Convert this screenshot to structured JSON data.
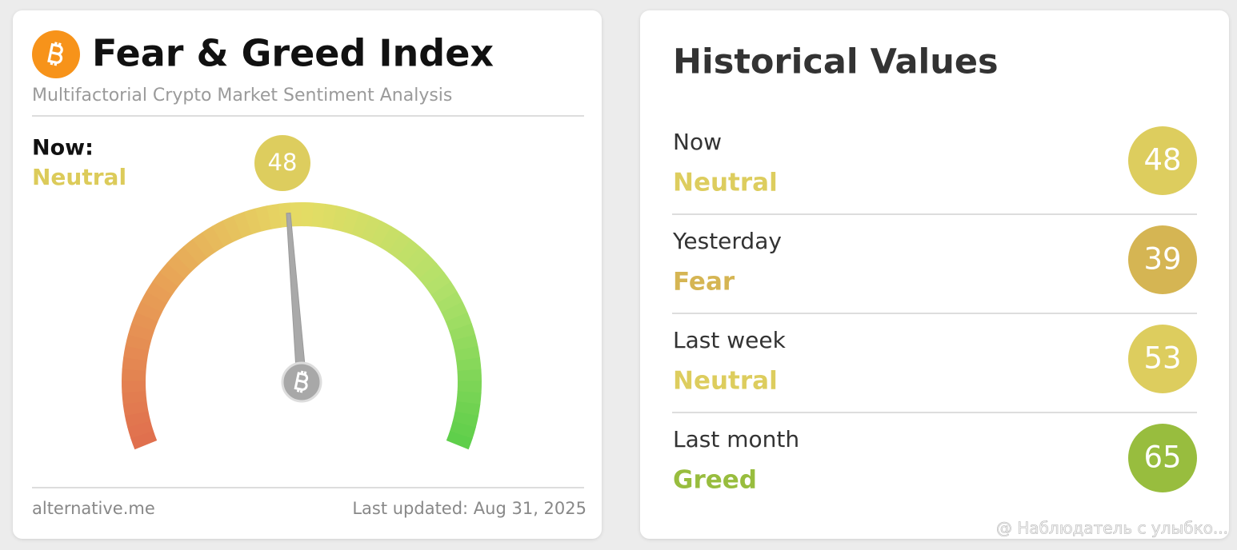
{
  "fear_greed_card": {
    "title": "Fear & Greed Index",
    "subtitle": "Multifactorial Crypto Market Sentiment Analysis",
    "now_label": "Now:",
    "classification": "Neutral",
    "classification_color": "#dccb5a",
    "value": 48,
    "value_color": "#ddcd5e",
    "gauge": {
      "min": 0,
      "max": 100
    },
    "source": "alternative.me",
    "last_updated": "Last updated: Aug 31, 2025"
  },
  "historical_card": {
    "title": "Historical Values",
    "rows": [
      {
        "label": "Now",
        "classification": "Neutral",
        "value": 48,
        "color": "#ddcd5e"
      },
      {
        "label": "Yesterday",
        "classification": "Fear",
        "value": 39,
        "color": "#d5b553"
      },
      {
        "label": "Last week",
        "classification": "Neutral",
        "value": 53,
        "color": "#ddcd5e"
      },
      {
        "label": "Last month",
        "classification": "Greed",
        "value": 65,
        "color": "#98bd3e"
      }
    ]
  },
  "watermark": "@ Наблюдатель с улыбко..."
}
